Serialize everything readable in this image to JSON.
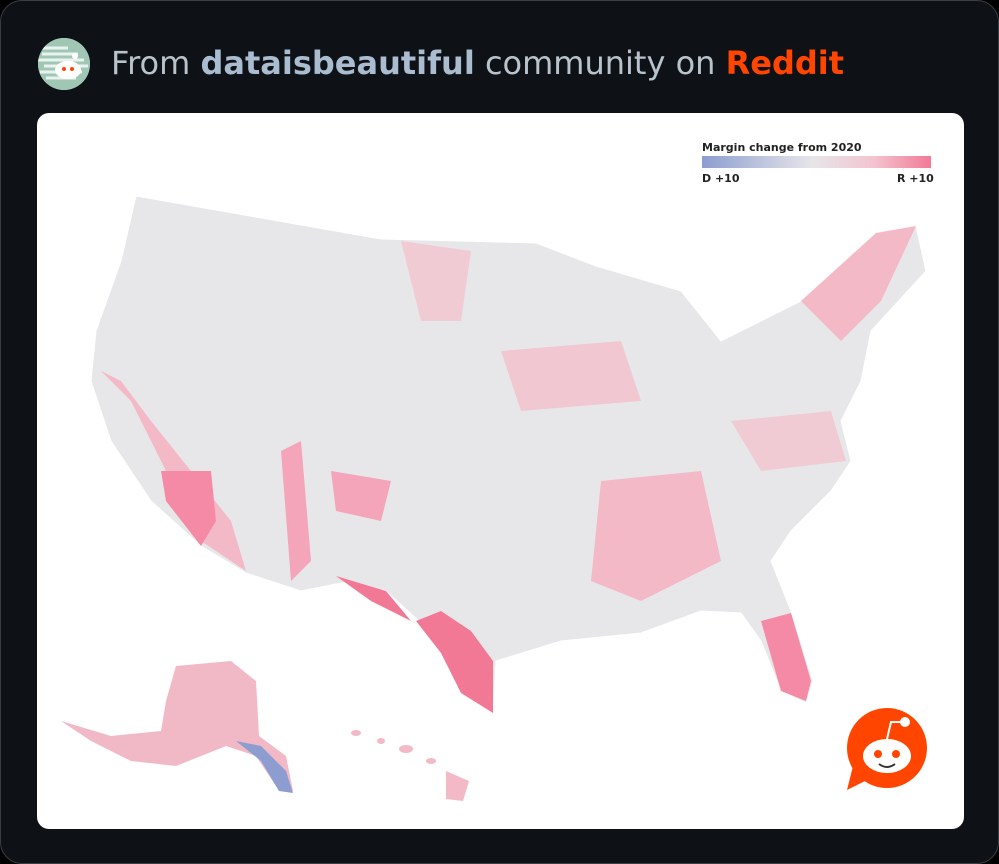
{
  "header": {
    "prefix": "From",
    "community": "dataisbeautiful",
    "middle": "community on",
    "site": "Reddit"
  },
  "legend": {
    "title": "Margin change from 2020",
    "left_label": "D +10",
    "right_label": "R +10"
  }
}
